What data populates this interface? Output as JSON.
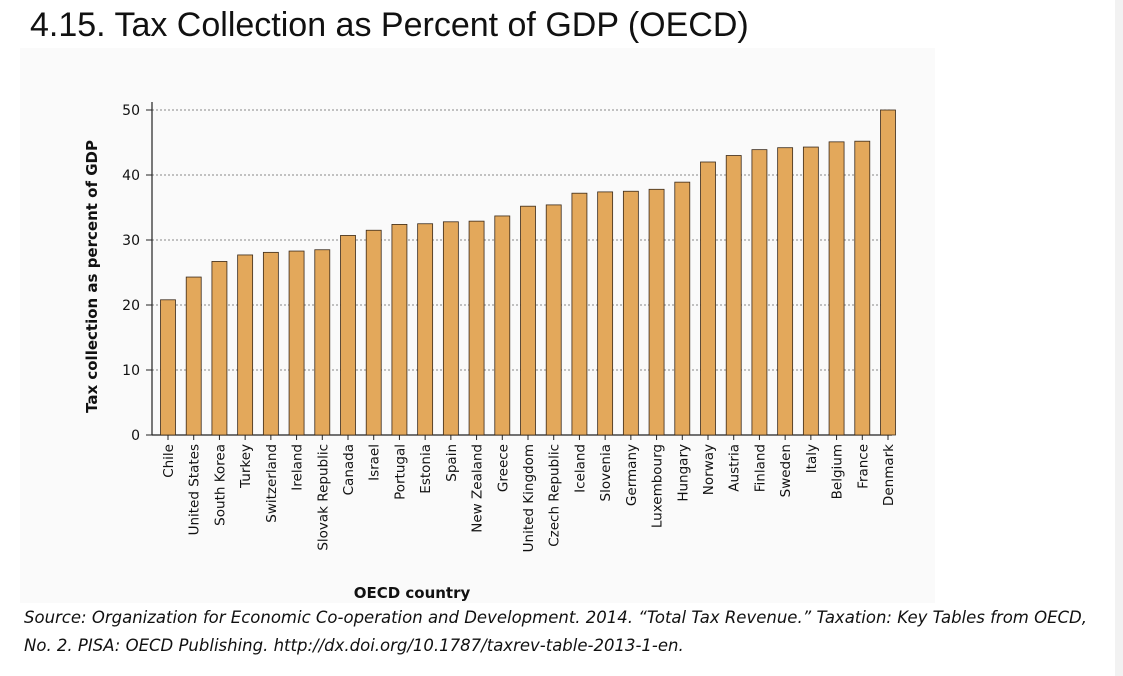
{
  "slide": {
    "title": "4.15. Tax Collection as Percent of GDP (OECD)",
    "source": "Source: Organization for Economic Co-operation and Development. 2014. “Total Tax Revenue.” Taxation:  Key Tables from OECD, No. 2. PISA: OECD Publishing. http://dx.doi.org/10.1787/taxrev-table-2013-1-en."
  },
  "colors": {
    "bar_fill": "#e3a85b",
    "bar_stroke": "#3a2a1a",
    "grid": "#888888",
    "axis": "#222222",
    "text": "#111111"
  },
  "chart_data": {
    "type": "bar",
    "xlabel": "OECD country",
    "ylabel": "Tax collection as percent of GDP",
    "ylim": [
      0,
      50
    ],
    "yticks": [
      0,
      10,
      20,
      30,
      40,
      50
    ],
    "grid": "horizontal dotted",
    "categories": [
      "Chile",
      "United States",
      "South Korea",
      "Turkey",
      "Switzerland",
      "Ireland",
      "Slovak Republic",
      "Canada",
      "Israel",
      "Portugal",
      "Estonia",
      "Spain",
      "New Zealand",
      "Greece",
      "United Kingdom",
      "Czech Republic",
      "Iceland",
      "Slovenia",
      "Germany",
      "Luxembourg",
      "Hungary",
      "Norway",
      "Austria",
      "Finland",
      "Sweden",
      "Italy",
      "Belgium",
      "France",
      "Denmark"
    ],
    "values": [
      20.8,
      24.3,
      26.7,
      27.7,
      28.1,
      28.3,
      28.5,
      30.7,
      31.5,
      32.4,
      32.5,
      32.8,
      32.9,
      33.7,
      35.2,
      35.4,
      37.2,
      37.4,
      37.5,
      37.8,
      38.9,
      42.0,
      43.0,
      43.9,
      44.2,
      44.3,
      45.1,
      45.2,
      50.0
    ]
  }
}
